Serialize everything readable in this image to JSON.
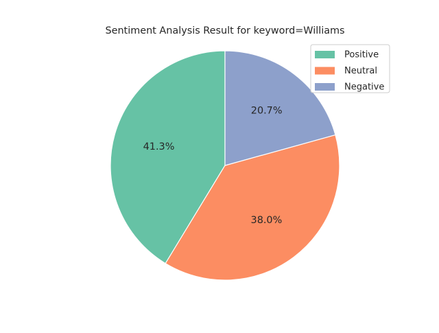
{
  "chart_data": {
    "type": "pie",
    "title": "Sentiment Analysis Result for keyword=Williams",
    "labels": [
      "Positive",
      "Neutral",
      "Negative"
    ],
    "values": [
      41.3,
      38.0,
      20.7
    ],
    "value_labels": [
      "41.3%",
      "38.0%",
      "20.7%"
    ],
    "colors": [
      "#66c2a5",
      "#fc8d62",
      "#8da0cb"
    ],
    "start_angle_deg": 90,
    "direction": "counterclockwise",
    "legend_position": "top-right"
  }
}
